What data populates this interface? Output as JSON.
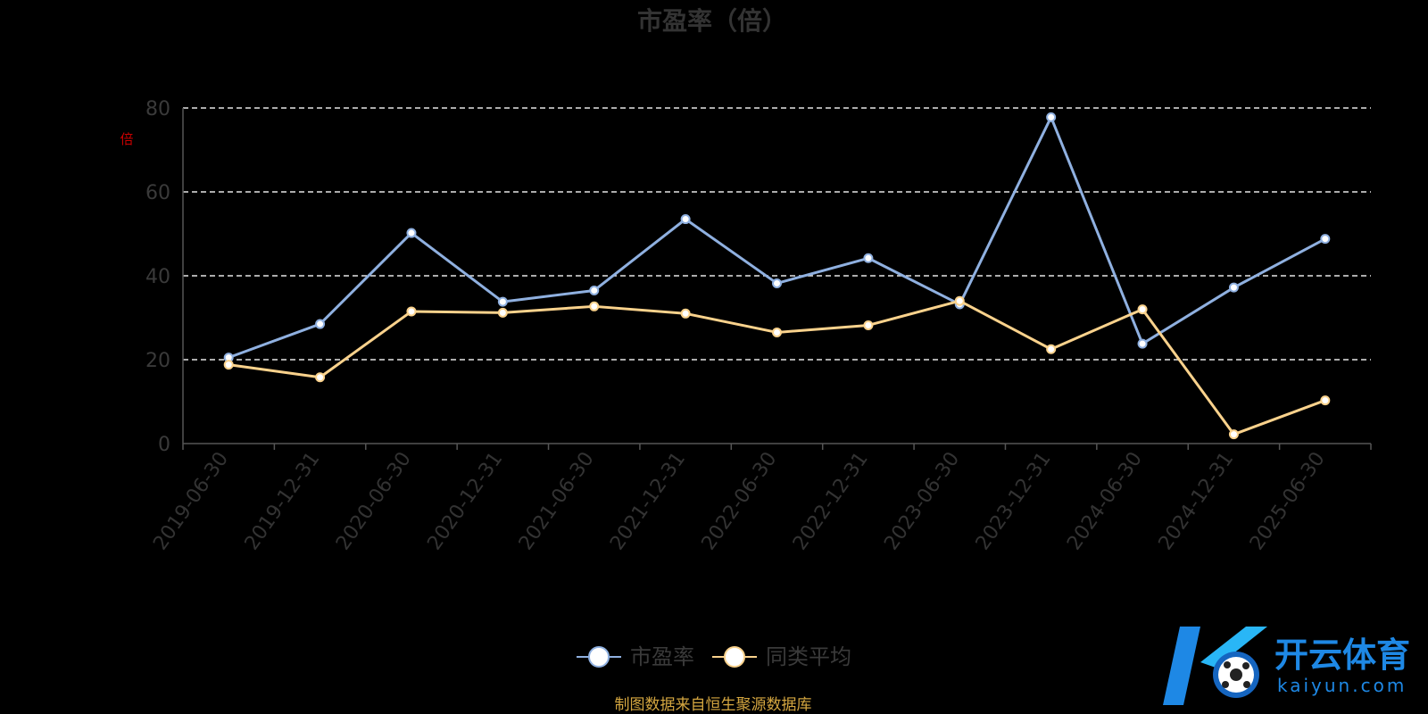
{
  "chart_data": {
    "type": "line",
    "title": "市盈率（倍）",
    "ylabel": "倍",
    "ylim": [
      0,
      80
    ],
    "yticks": [
      0,
      20,
      40,
      60,
      80
    ],
    "categories": [
      "2019-06-30",
      "2019-12-31",
      "2020-06-30",
      "2020-12-31",
      "2021-06-30",
      "2021-12-31",
      "2022-06-30",
      "2022-12-31",
      "2023-06-30",
      "2023-12-31",
      "2024-06-30",
      "2024-12-31",
      "2025-06-30"
    ],
    "series": [
      {
        "name": "市盈率",
        "color": "#8fb0e0",
        "values": [
          20.5,
          28.5,
          50.2,
          33.8,
          36.5,
          53.5,
          38.2,
          44.2,
          33.2,
          77.8,
          23.8,
          37.2,
          48.8
        ]
      },
      {
        "name": "同类平均",
        "color": "#fad28c",
        "values": [
          18.8,
          15.8,
          31.5,
          31.2,
          32.7,
          31.0,
          26.5,
          28.2,
          34.0,
          22.5,
          32.0,
          2.2,
          10.3
        ]
      }
    ],
    "grid": true,
    "legend_position": "bottom-center"
  },
  "source": "制图数据来自恒生聚源数据库",
  "watermark": {
    "name": "开云体育",
    "domain": "kaiyun.com"
  }
}
